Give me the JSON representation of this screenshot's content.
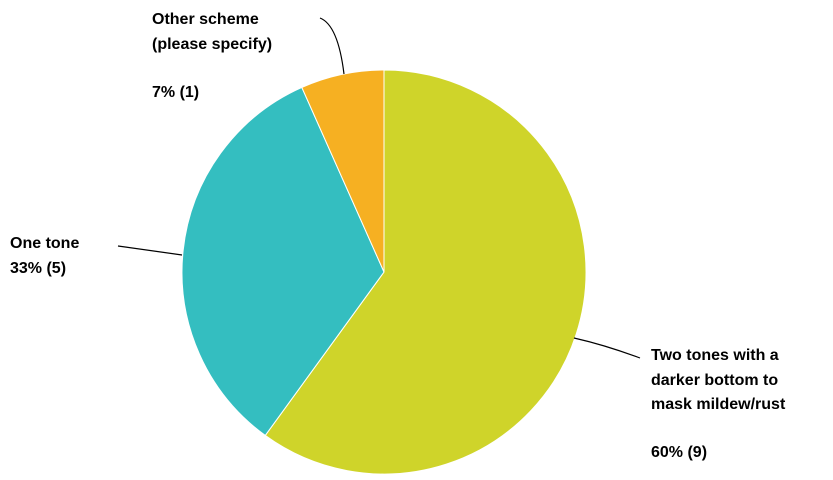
{
  "chart_data": {
    "type": "pie",
    "slices": [
      {
        "label": [
          "Two tones with a",
          "darker bottom to",
          "mask mildew/rust"
        ],
        "percent": 60,
        "count": 9,
        "value_label": "60% (9)",
        "color": "#cfd42a"
      },
      {
        "label": [
          "One tone"
        ],
        "percent": 33,
        "count": 5,
        "value_label": "33% (5)",
        "color": "#34bec0"
      },
      {
        "label": [
          "Other scheme",
          "(please specify)"
        ],
        "percent": 7,
        "count": 1,
        "value_label": "7% (1)",
        "color": "#f6b022"
      }
    ]
  }
}
